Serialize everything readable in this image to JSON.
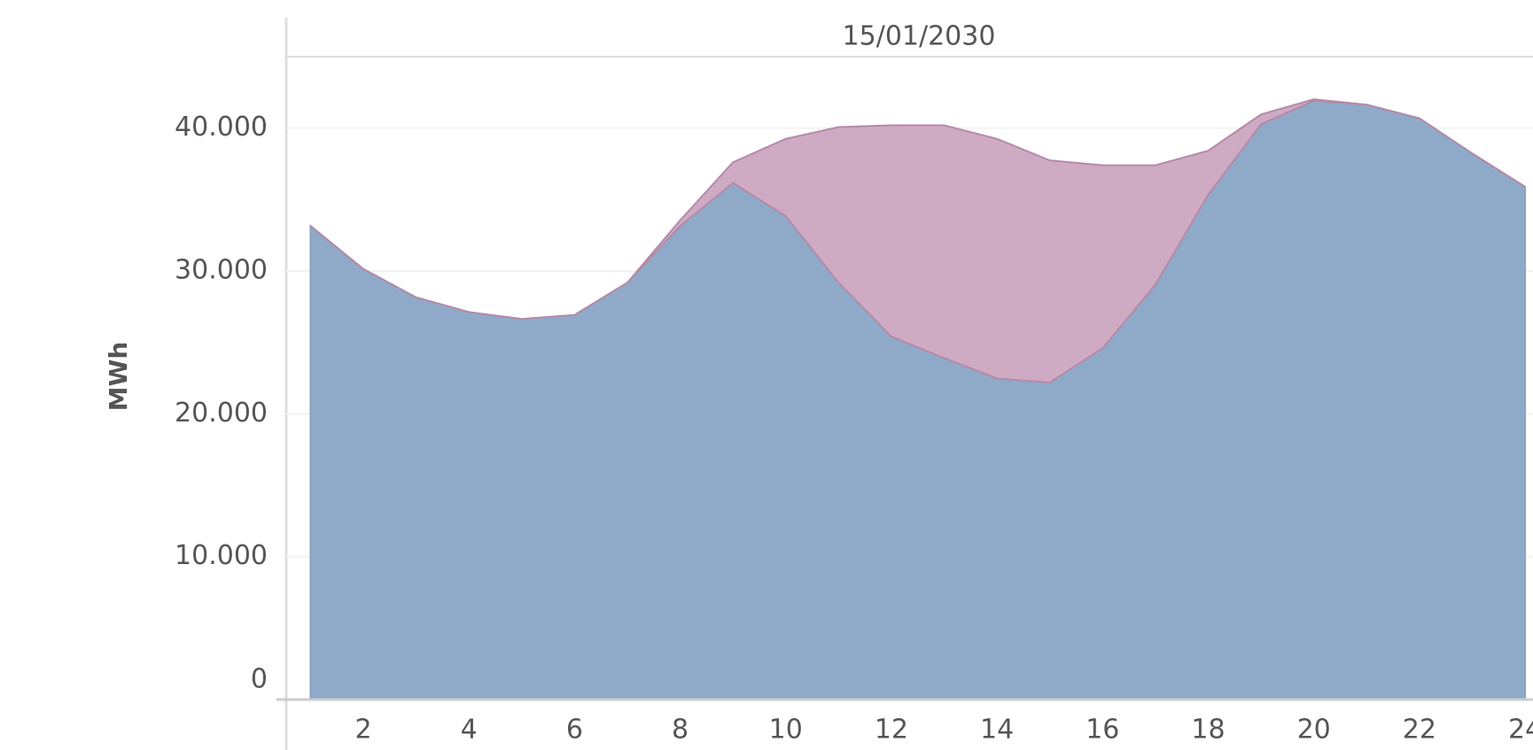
{
  "chart_data": {
    "type": "stacked_area",
    "title": "15/01/2030",
    "y_label": "MWh",
    "x": [
      1,
      2,
      3,
      4,
      5,
      6,
      7,
      8,
      9,
      10,
      11,
      12,
      13,
      14,
      15,
      16,
      17,
      18,
      19,
      20,
      21,
      22,
      23,
      24
    ],
    "series": [
      {
        "color": "#8eaac8",
        "values": [
          33150,
          30140,
          28150,
          27120,
          26640,
          26920,
          29180,
          33150,
          36160,
          33840,
          29180,
          25410,
          23900,
          22470,
          22190,
          24590,
          29040,
          35340,
          40270,
          41920,
          41640,
          40680,
          38220,
          35890
        ]
      },
      {
        "color": "#cfaac3",
        "values": [
          0,
          0,
          0,
          0,
          0,
          0,
          0,
          400,
          1440,
          5410,
          10890,
          14790,
          16300,
          16780,
          15550,
          12810,
          8360,
          3080,
          690,
          100,
          0,
          0,
          0,
          0
        ]
      }
    ],
    "xlim": [
      0.54,
      24.15
    ],
    "xticks": [
      2,
      4,
      6,
      8,
      10,
      12,
      14,
      16,
      18,
      20,
      22,
      24
    ],
    "ylim": [
      0,
      45000
    ],
    "yticks": [
      0,
      {
        "value": 10000,
        "label": "10.000"
      },
      {
        "value": 20000,
        "label": "20.000"
      },
      {
        "value": 30000,
        "label": "30.000"
      },
      {
        "value": 40000,
        "label": "40.000"
      }
    ],
    "grid": true
  }
}
